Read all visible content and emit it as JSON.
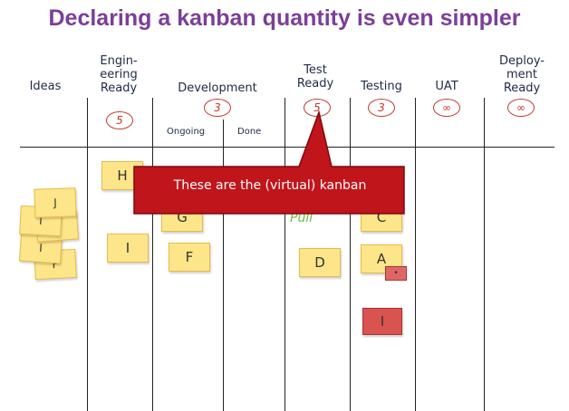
{
  "title": "Declaring a kanban quantity is even simpler",
  "columns": [
    {
      "label": "Ideas",
      "limit": ""
    },
    {
      "label": "Engin-\neering\nReady",
      "limit": "5"
    },
    {
      "label": "Development",
      "limit": "3"
    },
    {
      "label": "Test\nReady",
      "limit": "5"
    },
    {
      "label": "Testing",
      "limit": "3"
    },
    {
      "label": "UAT",
      "limit": "∞"
    },
    {
      "label": "Deploy-\nment\nReady",
      "limit": "∞"
    }
  ],
  "subcolumns": {
    "ongoing": "Ongoing",
    "done": "Done"
  },
  "cards": {
    "ideas": [
      "J",
      "I",
      "F",
      "I",
      "F"
    ],
    "engineering": [
      "H",
      "I"
    ],
    "development": [
      "G",
      "F"
    ],
    "test_ready": [
      "D"
    ],
    "testing": [
      "C",
      "A",
      "I"
    ]
  },
  "pull_label": "Pull",
  "callout": "These are the (virtual) kanban",
  "colors": {
    "title": "#7b3f97",
    "callout_fill": "#c0151b",
    "card": "#fde68a",
    "limit": "#c0392b"
  }
}
